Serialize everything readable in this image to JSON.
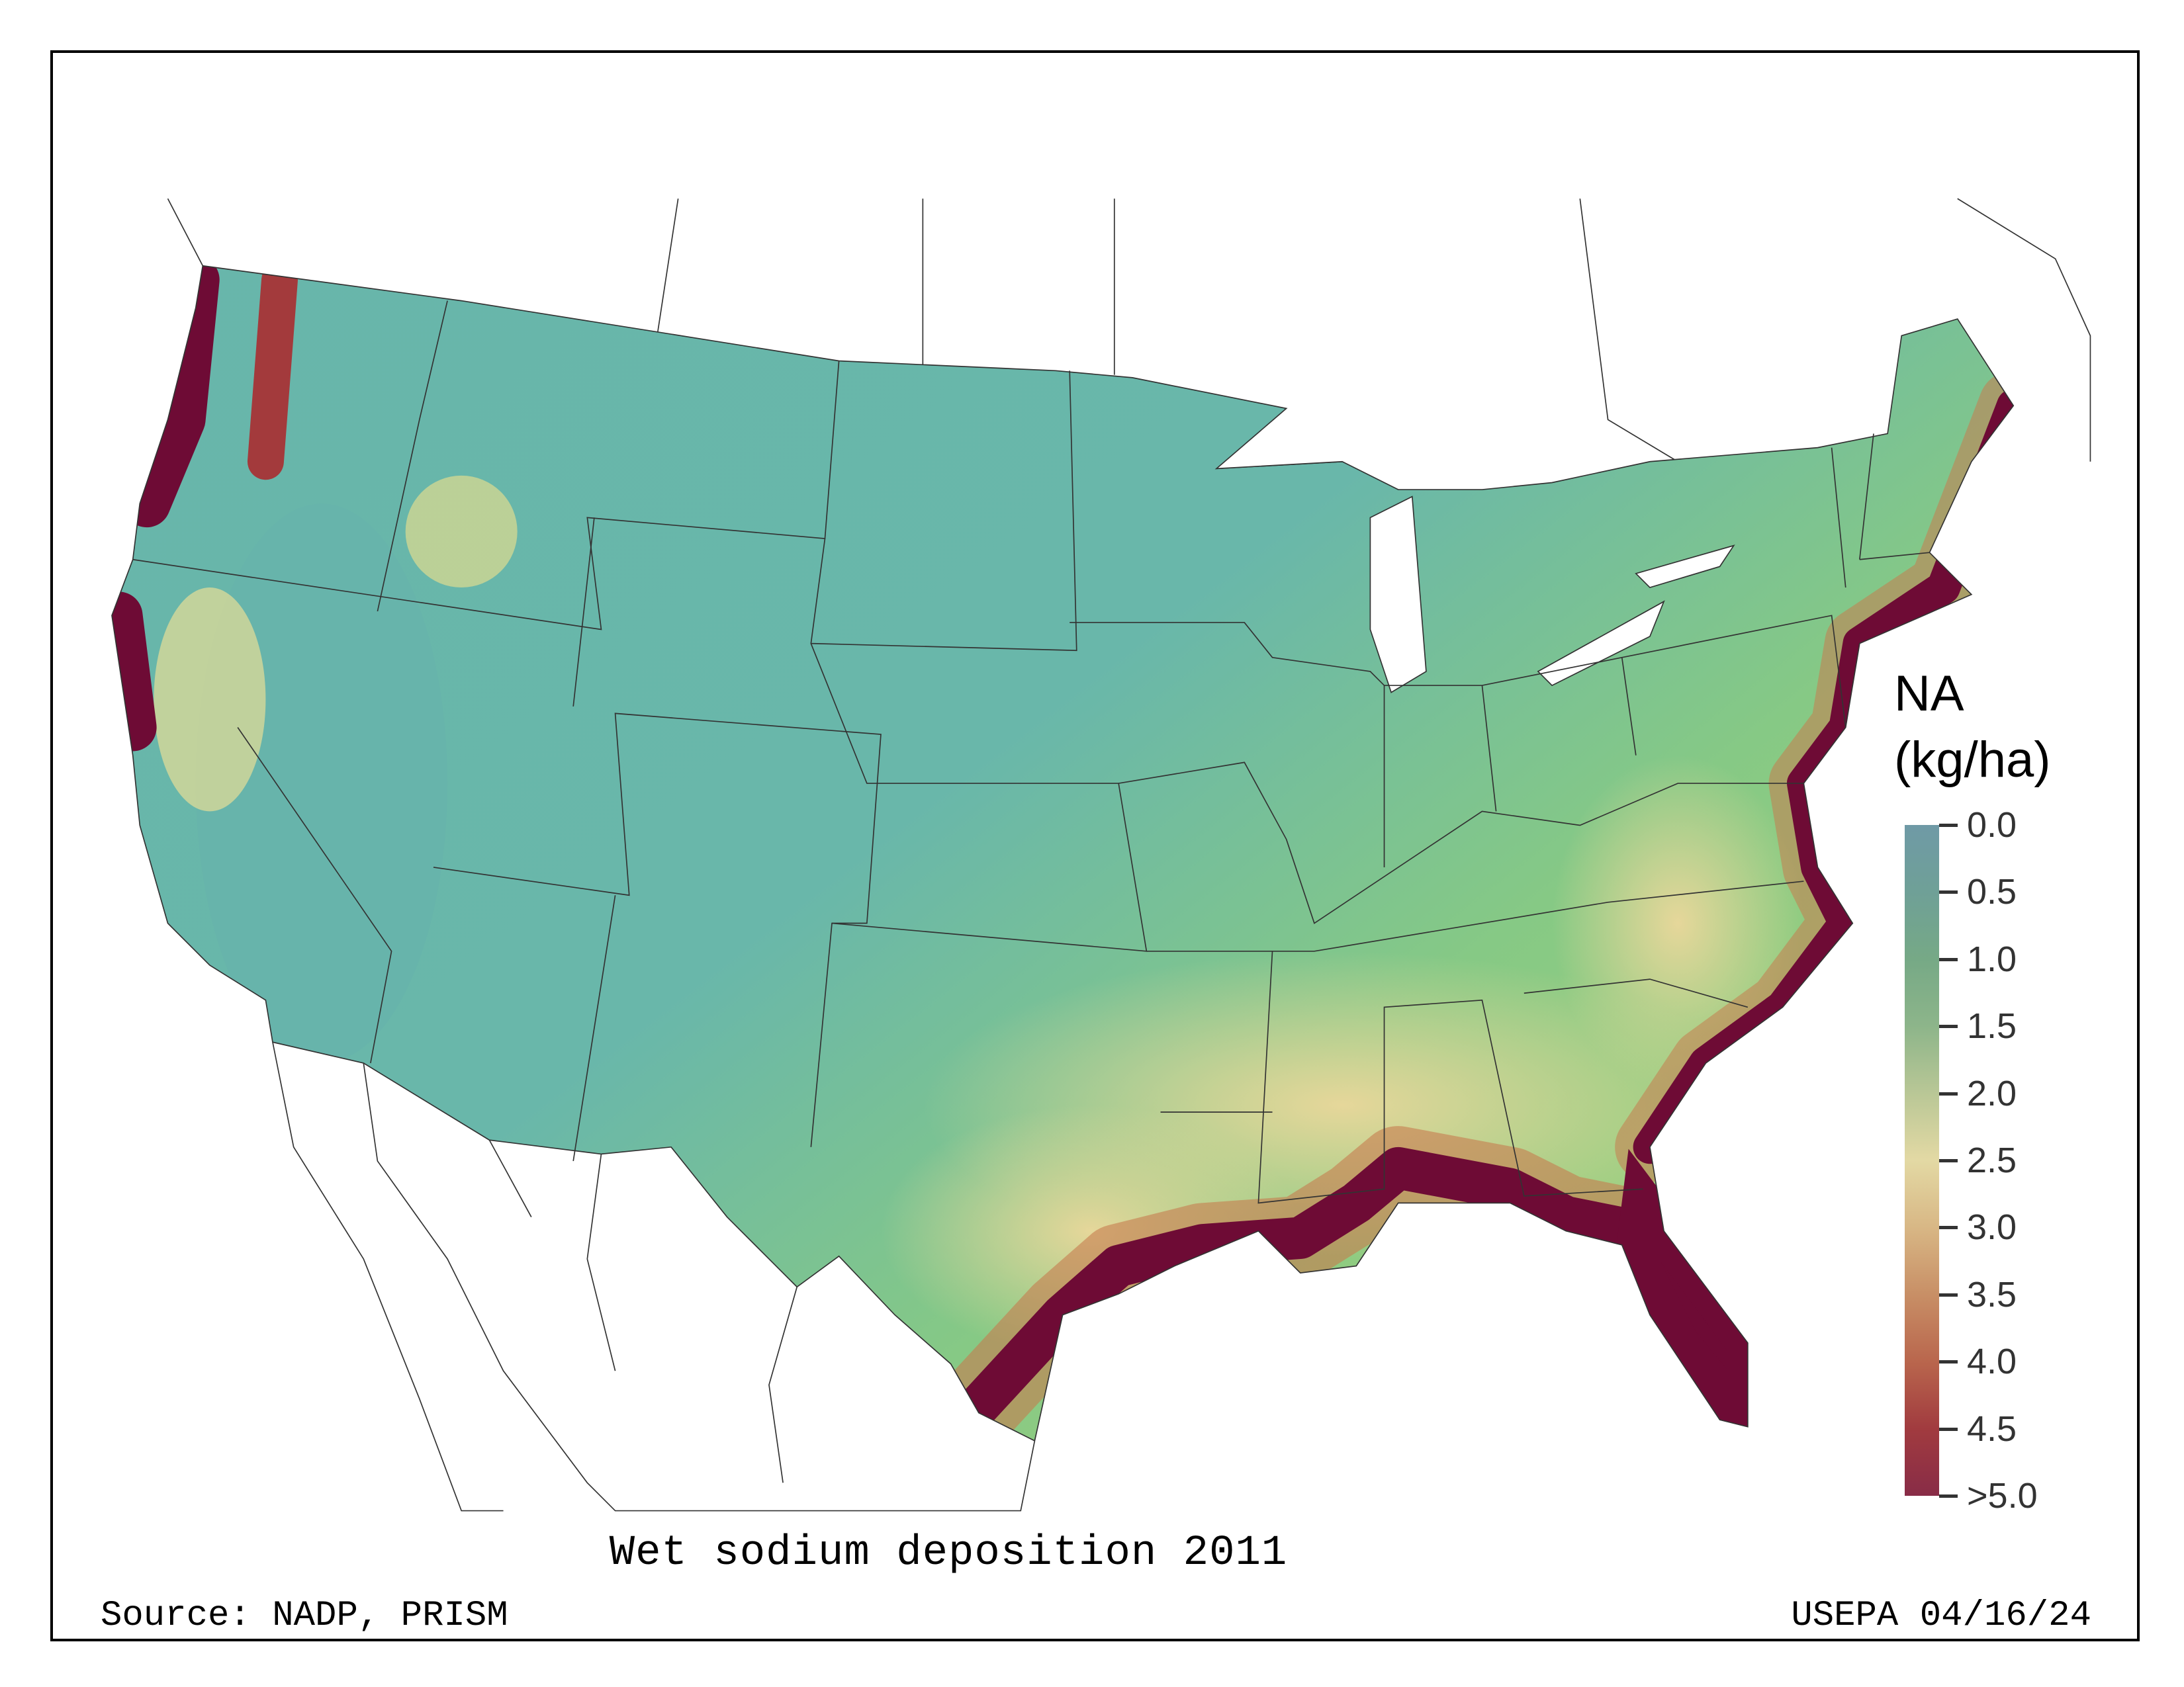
{
  "map": {
    "title": "Wet sodium deposition 2011",
    "source": "Source: NADP, PRISM",
    "credit": "USEPA 04/16/24"
  },
  "legend": {
    "title_line1": "NA",
    "title_line2": "(kg/ha)",
    "ticks": [
      "0.0",
      "0.5",
      "1.0",
      "1.5",
      "2.0",
      "2.5",
      "3.0",
      "3.5",
      "4.0",
      "4.5",
      ">5.0"
    ],
    "colors": [
      "#6f9aa6",
      "#76a986",
      "#e3d9a4",
      "#c88f66",
      "#882c47"
    ]
  },
  "palette": {
    "low": "#69b7ad",
    "mid": "#8fcc7a",
    "tan": "#e6d79a",
    "high": "#6e0b35"
  }
}
